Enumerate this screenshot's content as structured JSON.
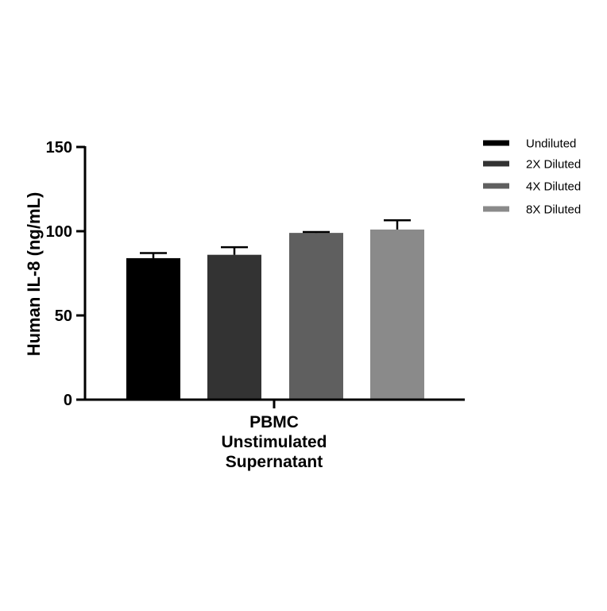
{
  "chart_data": {
    "type": "bar",
    "title": "",
    "xlabel": "",
    "ylabel": "Human IL-8 (ng/mL)",
    "ylim": [
      0,
      150
    ],
    "yticks": [
      0,
      50,
      100,
      150
    ],
    "category_label_lines": [
      "PBMC",
      "Unstimulated",
      "Supernatant"
    ],
    "legend_position": "top-right",
    "grid": false,
    "series": [
      {
        "name": "Undiluted",
        "value": 84,
        "error": 3,
        "color": "#000000"
      },
      {
        "name": "2X Diluted",
        "value": 86,
        "error": 4.5,
        "color": "#333333"
      },
      {
        "name": "4X Diluted",
        "value": 99,
        "error": 0.5,
        "color": "#5f5f5f"
      },
      {
        "name": "8X Diluted",
        "value": 101,
        "error": 5.5,
        "color": "#8a8a8a"
      }
    ]
  }
}
